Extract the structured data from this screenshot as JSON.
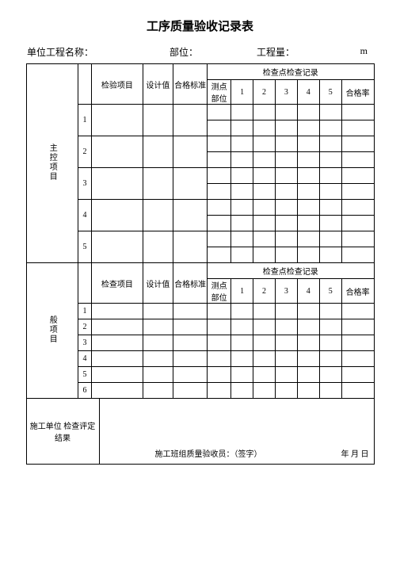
{
  "title": "工序质量验收记录表",
  "header": {
    "unit_label": "单位工程名称：",
    "position_label": "部位：",
    "qty_label": "工程量：",
    "qty_unit": "m"
  },
  "section1": {
    "group_label": "主控项目",
    "col_item": "检验项目",
    "col_design": "设计值",
    "col_std": "合格标准",
    "record_header": "检查点检查记录",
    "col_point": "测点 部位",
    "nums": [
      "1",
      "2",
      "3",
      "4",
      "5"
    ],
    "col_rate": "合格率",
    "row_labels": [
      "1",
      "2",
      "3",
      "4",
      "5"
    ]
  },
  "section2": {
    "group_label": "般项目",
    "col_item": "检查项目",
    "col_design": "设计值",
    "col_std": "合格标准",
    "record_header": "检查点检查记录",
    "col_point": "测点 部位",
    "nums": [
      "1",
      "2",
      "3",
      "4",
      "5"
    ],
    "col_rate": "合格率",
    "row_labels": [
      "1",
      "2",
      "3",
      "4",
      "5",
      "6"
    ]
  },
  "footer": {
    "left_label": "施工单位 检查评定结果",
    "sig_label": "施工班组质量验收员：（签字）",
    "date_label": "年 月 日"
  },
  "styles": {
    "background_color": "#ffffff",
    "border_color": "#000000",
    "text_color": "#000000",
    "title_fontsize": 15,
    "body_fontsize": 10,
    "header_fontsize": 12
  }
}
